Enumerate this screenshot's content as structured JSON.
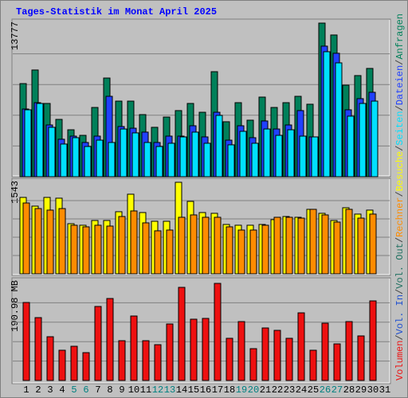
{
  "title": "Tages-Statistik im Monat April 2025",
  "separator": "/",
  "chart_data": [
    {
      "type": "bar",
      "ylim": [
        0,
        13777
      ],
      "yticks": [
        13777
      ],
      "grid": true,
      "series": [
        {
          "name": "Anfragen",
          "color": "#00805a",
          "values": [
            8350,
            9570,
            6570,
            5140,
            4210,
            3710,
            6210,
            8850,
            6780,
            6780,
            5570,
            4430,
            5350,
            5930,
            6570,
            5780,
            9420,
            4930,
            6640,
            5070,
            7140,
            6210,
            6640,
            7210,
            6500,
            13777,
            12710,
            8210,
            9070,
            9710,
            null
          ]
        },
        {
          "name": "Dateien",
          "color": "#2040ff",
          "values": [
            6070,
            6640,
            4640,
            3360,
            3640,
            3070,
            3640,
            7210,
            4500,
            4350,
            4000,
            3070,
            3640,
            3640,
            4570,
            3570,
            5780,
            3280,
            4570,
            3500,
            5000,
            4280,
            4640,
            5930,
            3570,
            11710,
            11070,
            6000,
            7000,
            7570,
            null
          ]
        },
        {
          "name": "Seiten",
          "color": "#00e0ff",
          "values": [
            6000,
            6570,
            4430,
            2930,
            3500,
            2710,
            3280,
            3070,
            4280,
            3930,
            3070,
            2710,
            3000,
            3570,
            4000,
            3000,
            5500,
            2860,
            4070,
            3000,
            4280,
            3710,
            4210,
            3640,
            3570,
            11210,
            10210,
            5430,
            6570,
            6780,
            null
          ]
        }
      ]
    },
    {
      "type": "bar",
      "ylim": [
        0,
        1543
      ],
      "yticks": [
        1543
      ],
      "grid": true,
      "series": [
        {
          "name": "Besuche",
          "color": "#ffff00",
          "values": [
            1288,
            1141,
            1288,
            1275,
            845,
            819,
            899,
            899,
            1047,
            1342,
            1033,
            886,
            886,
            1543,
            1221,
            1033,
            1020,
            832,
            819,
            819,
            832,
            913,
            966,
            953,
            1087,
            1020,
            899,
            1114,
            1007,
            1074,
            null
          ]
        },
        {
          "name": "Rechner",
          "color": "#ff8c00",
          "values": [
            1194,
            1100,
            1074,
            1100,
            819,
            792,
            819,
            805,
            966,
            1060,
            859,
            725,
            738,
            953,
            993,
            953,
            953,
            792,
            738,
            738,
            819,
            953,
            953,
            939,
            1087,
            993,
            872,
            1087,
            939,
            1007,
            null
          ]
        }
      ]
    },
    {
      "type": "bar",
      "ylim": [
        0,
        190.98
      ],
      "yticks": [
        {
          "value": 190.98,
          "label": "190.98 MB"
        }
      ],
      "grid": true,
      "categories": [
        "1",
        "2",
        "3",
        "4",
        "5",
        "6",
        "7",
        "8",
        "9",
        "10",
        "11",
        "12",
        "13",
        "14",
        "15",
        "16",
        "17",
        "18",
        "19",
        "20",
        "21",
        "22",
        "23",
        "24",
        "25",
        "26",
        "27",
        "28",
        "29",
        "30",
        "31"
      ],
      "category_colors": [
        "#000000",
        "#000000",
        "#000000",
        "#000000",
        "#008080",
        "#008080",
        "#000000",
        "#000000",
        "#000000",
        "#000000",
        "#000000",
        "#008080",
        "#008080",
        "#000000",
        "#000000",
        "#000000",
        "#000000",
        "#000000",
        "#008080",
        "#008080",
        "#000000",
        "#000000",
        "#000000",
        "#000000",
        "#000000",
        "#008080",
        "#008080",
        "#000000",
        "#000000",
        "#000000",
        "#000000"
      ],
      "series": [
        {
          "name": "Volumen",
          "color": "#ee1010",
          "values": [
            153.41,
            123.67,
            86.1,
            59.49,
            67.31,
            54.79,
            145.58,
            161.24,
            78.27,
            126.8,
            78.27,
            70.44,
            111.14,
            183.15,
            120.54,
            122.1,
            190.98,
            82.97,
            115.84,
            62.62,
            103.32,
            98.62,
            82.97,
            133.06,
            59.49,
            112.71,
            72.01,
            115.84,
            87.66,
            156.54,
            null
          ]
        }
      ],
      "legend_extra": [
        {
          "name": "Vol. Out",
          "color": "#207060"
        },
        {
          "name": "Vol. In",
          "color": "#2050d0"
        }
      ]
    }
  ]
}
